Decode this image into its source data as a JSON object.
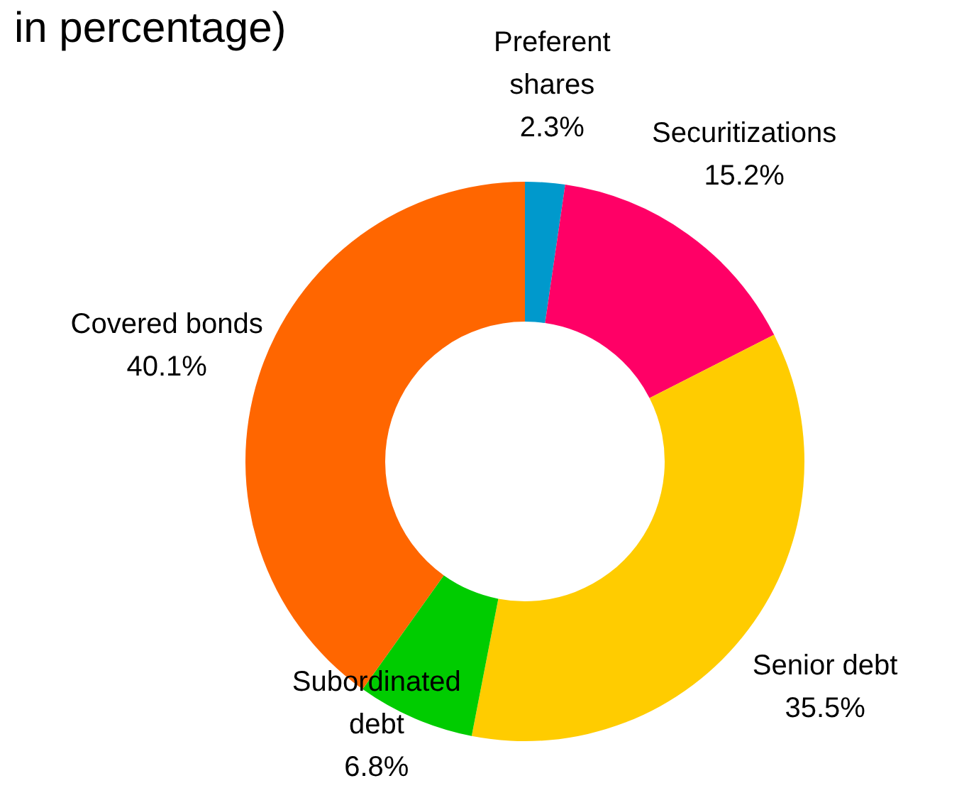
{
  "chart_data": {
    "type": "donut",
    "title": "in percentage)",
    "categories": [
      "Preferent shares",
      "Securitizations",
      "Senior debt",
      "Subordinated debt",
      "Covered bonds"
    ],
    "values": [
      2.3,
      15.2,
      35.5,
      6.8,
      40.1
    ],
    "colors": [
      "#0099cc",
      "#ff0066",
      "#ffcc00",
      "#00cc00",
      "#ff6600"
    ],
    "value_labels": [
      "2.3%",
      "15.2%",
      "35.5%",
      "6.8%",
      "40.1%"
    ],
    "legend": false
  }
}
